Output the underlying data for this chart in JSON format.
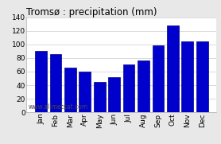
{
  "title": "Tromsø : precipitation (mm)",
  "months": [
    "Jan",
    "Feb",
    "Mar",
    "Apr",
    "May",
    "Jun",
    "Jul",
    "Aug",
    "Sep",
    "Oct",
    "Nov",
    "Dec"
  ],
  "values": [
    90,
    86,
    66,
    60,
    45,
    52,
    70,
    76,
    99,
    128,
    104,
    104
  ],
  "bar_color": "#0000cc",
  "bar_edge_color": "#000080",
  "ylim": [
    0,
    140
  ],
  "yticks": [
    0,
    20,
    40,
    60,
    80,
    100,
    120,
    140
  ],
  "background_color": "#e8e8e8",
  "plot_bg_color": "#ffffff",
  "grid_color": "#cccccc",
  "watermark": "www.allmetsat.com",
  "title_fontsize": 8.5,
  "tick_fontsize": 6.5,
  "watermark_fontsize": 5.5
}
